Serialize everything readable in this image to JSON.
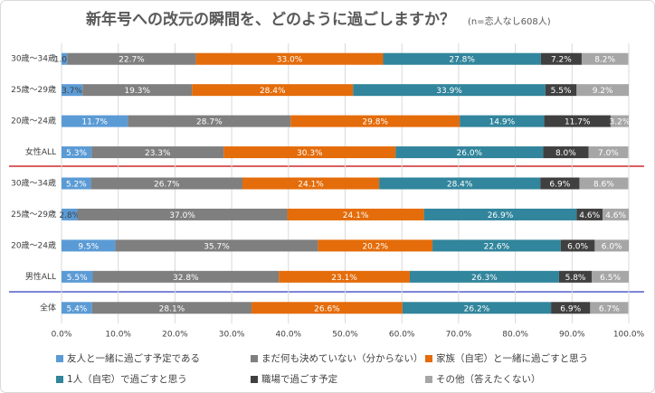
{
  "chart_data": {
    "type": "stacked-bar-horizontal",
    "title": "新年号への改元の瞬間を、どのように過ごしますか？",
    "subtitle": "(n=恋人なし608人)",
    "categories": [
      "30歳～34歳",
      "25歳～29歳",
      "20歳～24歳",
      "女性ALL",
      "30歳～34歳",
      "25歳～29歳",
      "20歳～24歳",
      "男性ALL",
      "全体"
    ],
    "xlim": [
      0,
      100
    ],
    "xticks": [
      {
        "value": 0,
        "label": "0.0%"
      },
      {
        "value": 10,
        "label": "10.0%"
      },
      {
        "value": 20,
        "label": "20.0%"
      },
      {
        "value": 30,
        "label": "30.0%"
      },
      {
        "value": 40,
        "label": "40.0%"
      },
      {
        "value": 50,
        "label": "50.0%"
      },
      {
        "value": 60,
        "label": "60.0%"
      },
      {
        "value": 70,
        "label": "70.0%"
      },
      {
        "value": 80,
        "label": "80.0%"
      },
      {
        "value": 90,
        "label": "90.0%"
      },
      {
        "value": 100,
        "label": "100.0%"
      }
    ],
    "grid": true,
    "legend": "bottom",
    "series": [
      {
        "name": "友人と一緒に過ごす予定である",
        "color": "#5b9bd5",
        "values": [
          1.0,
          3.7,
          11.7,
          5.3,
          5.2,
          2.8,
          9.5,
          5.5,
          5.4
        ],
        "value_labels": [
          "1.0%",
          "3.7%",
          "11.7%",
          "5.3%",
          "5.2%",
          "2.8%",
          "9.5%",
          "5.5%",
          "5.4%"
        ]
      },
      {
        "name": "まだ何も決めていない（分からない）",
        "color": "#7f7f7f",
        "values": [
          22.7,
          19.3,
          28.7,
          23.3,
          26.7,
          37.0,
          35.7,
          32.8,
          28.1
        ],
        "value_labels": [
          "22.7%",
          "19.3%",
          "28.7%",
          "23.3%",
          "26.7%",
          "37.0%",
          "35.7%",
          "32.8%",
          "28.1%"
        ]
      },
      {
        "name": "家族（自宅）と一緒に過ごすと思う",
        "color": "#e46c0a",
        "values": [
          33.0,
          28.4,
          29.8,
          30.3,
          24.1,
          24.1,
          20.2,
          23.1,
          26.6
        ],
        "value_labels": [
          "33.0%",
          "28.4%",
          "29.8%",
          "30.3%",
          "24.1%",
          "24.1%",
          "20.2%",
          "23.1%",
          "26.6%"
        ]
      },
      {
        "name": "1人（自宅）で過ごすと思う",
        "color": "#31859c",
        "values": [
          27.8,
          33.9,
          14.9,
          26.0,
          28.4,
          26.9,
          22.6,
          26.3,
          26.2
        ],
        "value_labels": [
          "27.8%",
          "33.9%",
          "14.9%",
          "26.0%",
          "28.4%",
          "26.9%",
          "22.6%",
          "26.3%",
          "26.2%"
        ]
      },
      {
        "name": "職場で過ごす予定",
        "color": "#404040",
        "values": [
          7.2,
          5.5,
          11.7,
          8.0,
          6.9,
          4.6,
          6.0,
          5.8,
          6.9
        ],
        "value_labels": [
          "7.2%",
          "5.5%",
          "11.7%",
          "8.0%",
          "6.9%",
          "4.6%",
          "6.0%",
          "5.8%",
          "6.9%"
        ]
      },
      {
        "name": "その他（答えたくない）",
        "color": "#a6a6a6",
        "values": [
          8.2,
          9.2,
          3.2,
          7.0,
          8.6,
          4.6,
          6.0,
          6.5,
          6.7
        ],
        "value_labels": [
          "8.2%",
          "9.2%",
          "3.2%",
          "7.0%",
          "8.6%",
          "4.6%",
          "6.0%",
          "6.5%",
          "6.7%"
        ]
      }
    ]
  }
}
